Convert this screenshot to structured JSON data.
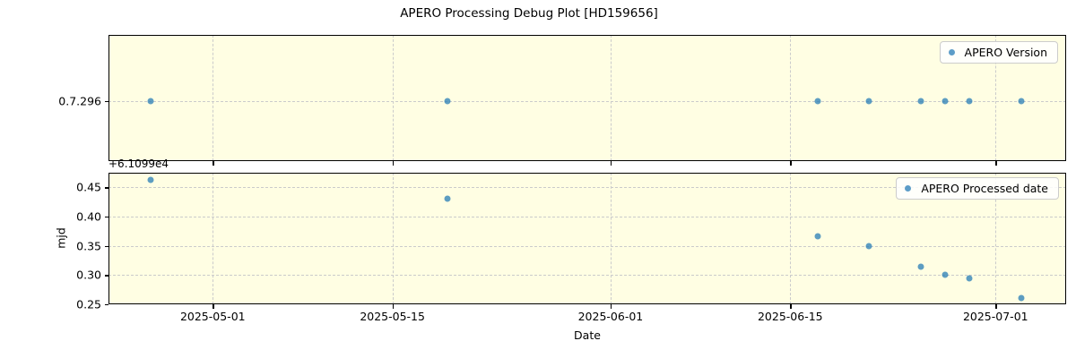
{
  "title": "APERO Processing Debug Plot [HD159656]",
  "colors": {
    "figure_background": "#ffffff",
    "axes_background": "#fffee3",
    "marker": "#1f77b4",
    "marker_alpha": 0.72,
    "grid": "#cbcbcb",
    "spine": "#000000",
    "legend_border": "#cccccc"
  },
  "shared_x": {
    "label": "Date",
    "tick_labels": [
      "2025-05-01",
      "2025-05-15",
      "2025-06-01",
      "2025-06-15",
      "2025-07-01"
    ],
    "xlim": [
      "2025-04-22T21:00:00Z",
      "2025-07-06T12:00:00Z"
    ]
  },
  "chart_data": [
    {
      "type": "scatter",
      "panel": "apero-version",
      "legend": "APERO Version",
      "legend_position": "upper right",
      "grid": true,
      "x": [
        "2025-04-26T04:00:00Z",
        "2025-05-19T07:00:00Z",
        "2025-06-17T04:00:00Z",
        "2025-06-21T03:00:00Z",
        "2025-06-25T04:30:00Z",
        "2025-06-27T02:00:00Z",
        "2025-06-28T23:00:00Z",
        "2025-07-03T00:00:00Z"
      ],
      "y_category": "0.7.296",
      "ytick_labels": [
        "0.7.296"
      ],
      "note": "all points share the single categorical y value 0.7.296"
    },
    {
      "type": "scatter",
      "panel": "apero-processed-date",
      "legend": "APERO Processed date",
      "legend_position": "upper right",
      "grid": true,
      "ylabel": "mjd",
      "y_offset_text": "+6.1099e4",
      "y_offset": 61099,
      "x": [
        "2025-04-26T04:00:00Z",
        "2025-05-19T07:00:00Z",
        "2025-06-17T04:00:00Z",
        "2025-06-21T03:00:00Z",
        "2025-06-25T04:30:00Z",
        "2025-06-27T02:00:00Z",
        "2025-06-28T23:00:00Z",
        "2025-07-03T00:00:00Z"
      ],
      "y": [
        0.462,
        0.43,
        0.367,
        0.35,
        0.315,
        0.3,
        0.294,
        0.261
      ],
      "yticks": [
        0.25,
        0.3,
        0.35,
        0.4,
        0.45
      ],
      "ylim": [
        0.25,
        0.475
      ]
    }
  ]
}
